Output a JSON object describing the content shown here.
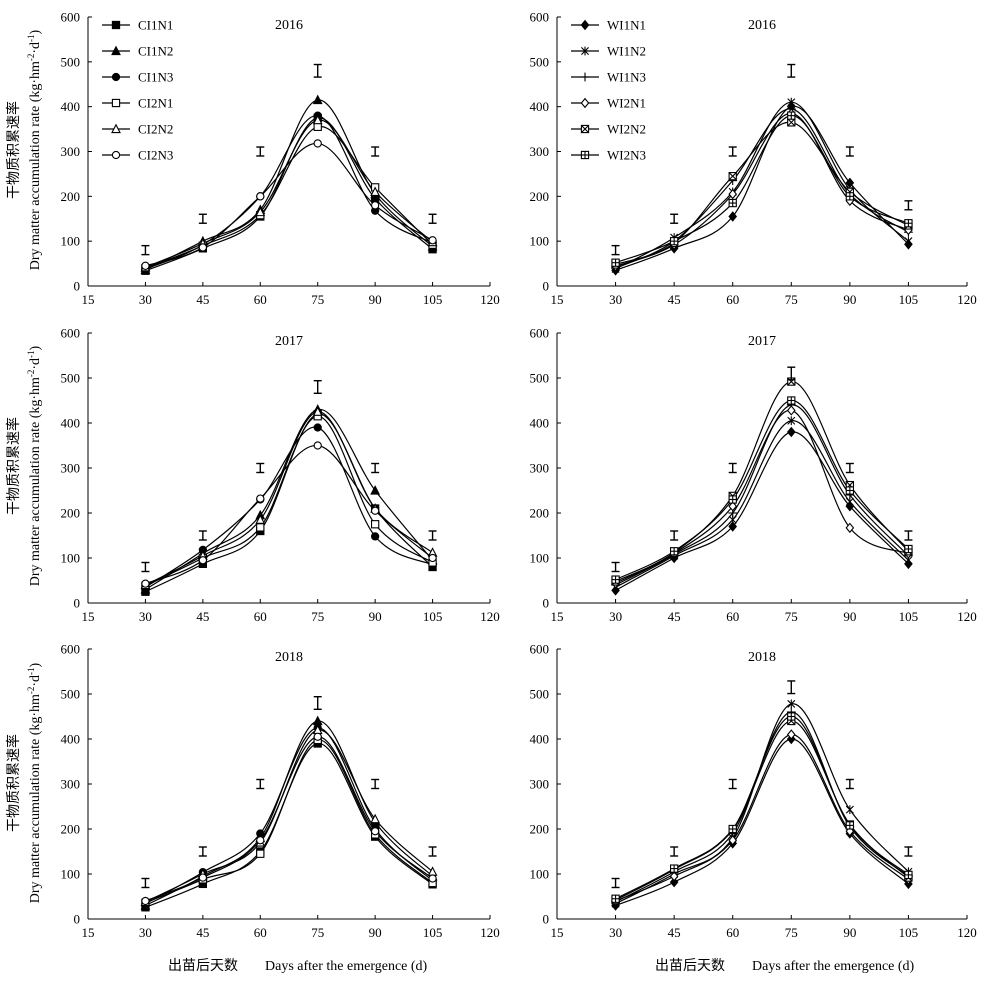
{
  "figure": {
    "y_label_cn": "干物质积累速率",
    "y_label_en": "Dry matter accumulation rate (kg·hm",
    "y_label_sup1": "-2",
    "y_label_mid": "·d",
    "y_label_sup2": "-1",
    "y_label_end": ")",
    "x_label_cn": "出苗后天数",
    "x_label_en": "Days after the emergence (d)"
  },
  "chart_data": [
    {
      "type": "line",
      "title": "2016",
      "x": [
        30,
        45,
        60,
        75,
        90,
        105
      ],
      "xlim": [
        15,
        120
      ],
      "ylim": [
        0,
        600
      ],
      "xticks": [
        15,
        30,
        45,
        60,
        75,
        90,
        105,
        120
      ],
      "yticks": [
        0,
        100,
        200,
        300,
        400,
        500,
        600
      ],
      "error_bars": [
        80,
        150,
        300,
        480,
        300,
        150
      ],
      "legend": "top-left",
      "series": [
        {
          "name": "CI1N1",
          "marker": "square-filled",
          "values": [
            34,
            84,
            155,
            375,
            195,
            82
          ]
        },
        {
          "name": "CI1N2",
          "marker": "triangle-filled",
          "values": [
            36,
            100,
            170,
            415,
            205,
            88
          ]
        },
        {
          "name": "CI1N3",
          "marker": "circle-filled",
          "values": [
            38,
            92,
            200,
            380,
            168,
            96
          ]
        },
        {
          "name": "CI2N1",
          "marker": "square-open",
          "values": [
            40,
            90,
            158,
            355,
            220,
            92
          ]
        },
        {
          "name": "CI2N2",
          "marker": "triangle-open",
          "values": [
            42,
            95,
            165,
            370,
            210,
            98
          ]
        },
        {
          "name": "CI2N3",
          "marker": "circle-open",
          "values": [
            45,
            86,
            200,
            318,
            180,
            102
          ]
        }
      ]
    },
    {
      "type": "line",
      "title": "2016",
      "x": [
        30,
        45,
        60,
        75,
        90,
        105
      ],
      "xlim": [
        15,
        120
      ],
      "ylim": [
        0,
        600
      ],
      "xticks": [
        15,
        30,
        45,
        60,
        75,
        90,
        105,
        120
      ],
      "yticks": [
        0,
        100,
        200,
        300,
        400,
        500,
        600
      ],
      "error_bars": [
        80,
        150,
        300,
        480,
        300,
        180
      ],
      "legend": "top-left",
      "series": [
        {
          "name": "WI1N1",
          "marker": "diamond-filled",
          "values": [
            35,
            84,
            155,
            400,
            230,
            93
          ]
        },
        {
          "name": "WI1N2",
          "marker": "star",
          "values": [
            38,
            108,
            210,
            410,
            215,
            100
          ]
        },
        {
          "name": "WI1N3",
          "marker": "plus",
          "values": [
            40,
            100,
            235,
            395,
            205,
            120
          ]
        },
        {
          "name": "WI2N1",
          "marker": "diamond-open",
          "values": [
            44,
            92,
            205,
            385,
            190,
            125
          ]
        },
        {
          "name": "WI2N2",
          "marker": "square-x",
          "values": [
            48,
            96,
            245,
            365,
            210,
            135
          ]
        },
        {
          "name": "WI2N3",
          "marker": "square-plus",
          "values": [
            52,
            100,
            185,
            380,
            200,
            140
          ]
        }
      ]
    },
    {
      "type": "line",
      "title": "2017",
      "x": [
        30,
        45,
        60,
        75,
        90,
        105
      ],
      "xlim": [
        15,
        120
      ],
      "ylim": [
        0,
        600
      ],
      "xticks": [
        15,
        30,
        45,
        60,
        75,
        90,
        105,
        120
      ],
      "yticks": [
        0,
        100,
        200,
        300,
        400,
        500,
        600
      ],
      "error_bars": [
        80,
        150,
        300,
        480,
        300,
        150
      ],
      "legend": "none",
      "series": [
        {
          "name": "CI1N1",
          "marker": "square-filled",
          "values": [
            25,
            87,
            160,
            420,
            210,
            80
          ]
        },
        {
          "name": "CI1N2",
          "marker": "triangle-filled",
          "values": [
            30,
            110,
            195,
            430,
            250,
            95
          ]
        },
        {
          "name": "CI1N3",
          "marker": "circle-filled",
          "values": [
            35,
            118,
            230,
            390,
            148,
            85
          ]
        },
        {
          "name": "CI2N1",
          "marker": "square-open",
          "values": [
            38,
            100,
            168,
            415,
            175,
            90
          ]
        },
        {
          "name": "CI2N2",
          "marker": "triangle-open",
          "values": [
            40,
            105,
            185,
            425,
            210,
            112
          ]
        },
        {
          "name": "CI2N3",
          "marker": "circle-open",
          "values": [
            43,
            95,
            232,
            350,
            205,
            100
          ]
        }
      ]
    },
    {
      "type": "line",
      "title": "2017",
      "x": [
        30,
        45,
        60,
        75,
        90,
        105
      ],
      "xlim": [
        15,
        120
      ],
      "ylim": [
        0,
        600
      ],
      "xticks": [
        15,
        30,
        45,
        60,
        75,
        90,
        105,
        120
      ],
      "yticks": [
        0,
        100,
        200,
        300,
        400,
        500,
        600
      ],
      "error_bars": [
        80,
        150,
        300,
        510,
        300,
        150
      ],
      "legend": "none",
      "series": [
        {
          "name": "WI1N1",
          "marker": "diamond-filled",
          "values": [
            28,
            100,
            170,
            380,
            215,
            87
          ]
        },
        {
          "name": "WI1N2",
          "marker": "star",
          "values": [
            35,
            105,
            185,
            405,
            225,
            95
          ]
        },
        {
          "name": "WI1N3",
          "marker": "plus",
          "values": [
            40,
            108,
            200,
            440,
            240,
            105
          ]
        },
        {
          "name": "WI2N1",
          "marker": "diamond-open",
          "values": [
            44,
            110,
            215,
            428,
            167,
            110
          ]
        },
        {
          "name": "WI2N2",
          "marker": "square-x",
          "values": [
            48,
            112,
            238,
            492,
            262,
            115
          ]
        },
        {
          "name": "WI2N3",
          "marker": "square-plus",
          "values": [
            52,
            115,
            230,
            450,
            250,
            120
          ]
        }
      ]
    },
    {
      "type": "line",
      "title": "2018",
      "x": [
        30,
        45,
        60,
        75,
        90,
        105
      ],
      "xlim": [
        15,
        120
      ],
      "ylim": [
        0,
        600
      ],
      "xticks": [
        15,
        30,
        45,
        60,
        75,
        90,
        105,
        120
      ],
      "yticks": [
        0,
        100,
        200,
        300,
        400,
        500,
        600
      ],
      "error_bars": [
        80,
        150,
        300,
        480,
        300,
        150
      ],
      "legend": "none",
      "series": [
        {
          "name": "CI1N1",
          "marker": "square-filled",
          "values": [
            26,
            78,
            150,
            390,
            183,
            77
          ]
        },
        {
          "name": "CI1N2",
          "marker": "triangle-filled",
          "values": [
            30,
            95,
            180,
            440,
            215,
            95
          ]
        },
        {
          "name": "CI1N3",
          "marker": "circle-filled",
          "values": [
            34,
            104,
            190,
            425,
            200,
            85
          ]
        },
        {
          "name": "CI2N1",
          "marker": "square-open",
          "values": [
            36,
            88,
            145,
            398,
            188,
            80
          ]
        },
        {
          "name": "CI2N2",
          "marker": "triangle-open",
          "values": [
            38,
            100,
            170,
            420,
            222,
            105
          ]
        },
        {
          "name": "CI2N3",
          "marker": "circle-open",
          "values": [
            40,
            92,
            175,
            405,
            195,
            90
          ]
        }
      ]
    },
    {
      "type": "line",
      "title": "2018",
      "x": [
        30,
        45,
        60,
        75,
        90,
        105
      ],
      "xlim": [
        15,
        120
      ],
      "ylim": [
        0,
        600
      ],
      "xticks": [
        15,
        30,
        45,
        60,
        75,
        90,
        105,
        120
      ],
      "yticks": [
        0,
        100,
        200,
        300,
        400,
        500,
        600
      ],
      "error_bars": [
        80,
        150,
        300,
        515,
        300,
        150
      ],
      "legend": "none",
      "series": [
        {
          "name": "WI1N1",
          "marker": "diamond-filled",
          "values": [
            30,
            82,
            168,
            400,
            190,
            78
          ]
        },
        {
          "name": "WI1N2",
          "marker": "star",
          "values": [
            34,
            100,
            180,
            478,
            243,
            105
          ]
        },
        {
          "name": "WI1N3",
          "marker": "plus",
          "values": [
            38,
            105,
            190,
            460,
            205,
            95
          ]
        },
        {
          "name": "WI2N1",
          "marker": "diamond-open",
          "values": [
            40,
            95,
            175,
            410,
            195,
            88
          ]
        },
        {
          "name": "WI2N2",
          "marker": "square-x",
          "values": [
            42,
            110,
            198,
            440,
            210,
            92
          ]
        },
        {
          "name": "WI2N3",
          "marker": "square-plus",
          "values": [
            45,
            112,
            200,
            450,
            208,
            98
          ]
        }
      ]
    }
  ]
}
